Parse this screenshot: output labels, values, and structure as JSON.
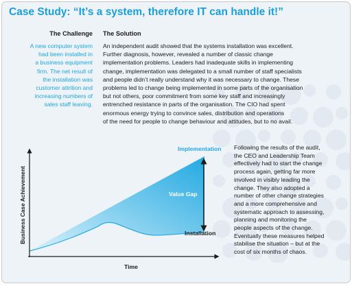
{
  "case_study": {
    "title": "Case Study: “It’s a system, therefore IT can handle it!”",
    "challenge": {
      "heading": "The Challenge",
      "lines": [
        "A new computer system",
        "had been installed in",
        "a business equipment",
        "firm. The net result of",
        "the installation was",
        "customer attrition and",
        "increasing numbers of",
        "sales staff leaving."
      ]
    },
    "solution": {
      "heading": "The Solution",
      "lines": [
        "An independent audit showed that the systems installation was excellent.",
        "Further diagnosis, however, revealed a number of classic change",
        "implementation problems. Leaders had inadequate skills in implementing",
        "change, implementation was delegated to a small number of staff specialists",
        "and people didn’t really understand why it was necessary to change. These",
        "problems led to change being implemented in some parts of the organisation",
        "but not others, poor commitment from some key staff and increasingly",
        "entrenched resistance in parts of the organisation. The CIO had spent",
        "enormous energy trying to convince sales, distribution and operations",
        "of the need for people to change behaviour and attitudes, but to no avail."
      ]
    },
    "following": {
      "lines": [
        "Following the results of the audit,",
        "the CEO and Leadership Team",
        "effectively had to start the change",
        "process again, getting far more",
        "involved in visibly leading the",
        "change. They also adopted a",
        "number of other change strategies",
        "and a more comprehensive and",
        "systematic approach to assessing,",
        "planning and monitoring the",
        "people aspects of the change.",
        "Eventually these measures helped",
        "stabilise the situation – but at the",
        "cost of six months of chaos."
      ]
    }
  },
  "diagram": {
    "labels": {
      "implementation": "Implementation",
      "value_gap": "Value Gap",
      "installation": "Installation",
      "y_axis": "Business Case Achievement",
      "x_axis": "Time"
    },
    "colors": {
      "title": "#1a9fd9",
      "challenge_text": "#1da6dd",
      "implementation_label": "#2aa7df",
      "area_dark": "#23a9e1",
      "area_light": "#d8f1fb",
      "value_gap_label": "#ffffff",
      "axis": "#1b1b1b"
    }
  }
}
